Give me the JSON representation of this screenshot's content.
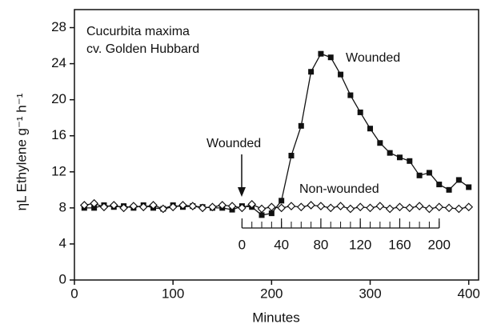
{
  "chart_data": {
    "type": "line",
    "annotations": [
      "Cucurbita maxima",
      "cv. Golden Hubbard",
      "Wounded",
      "Wounded",
      "Non-wounded"
    ],
    "x_label": "Minutes",
    "y_label": "ηL Ethylene g⁻¹ h⁻¹",
    "x": [
      10,
      20,
      30,
      40,
      50,
      60,
      70,
      80,
      90,
      100,
      110,
      120,
      130,
      140,
      150,
      160,
      170,
      180,
      190,
      200,
      210,
      220,
      230,
      240,
      250,
      260,
      270,
      280,
      290,
      300,
      310,
      320,
      330,
      340,
      350,
      360,
      370,
      380,
      390,
      400
    ],
    "series": [
      {
        "name": "Wounded",
        "color": "#111111",
        "marker": "square",
        "values": [
          8.0,
          8.0,
          8.3,
          8.1,
          8.2,
          8.0,
          8.3,
          8.0,
          7.9,
          8.3,
          8.1,
          8.2,
          8.1,
          8.0,
          8.0,
          7.8,
          8.2,
          8.1,
          7.2,
          7.4,
          8.8,
          13.8,
          17.1,
          23.1,
          25.1,
          24.7,
          22.8,
          20.5,
          18.6,
          16.8,
          15.2,
          14.1,
          13.6,
          13.2,
          11.6,
          11.9,
          10.6,
          10.0,
          11.1,
          10.3
        ]
      },
      {
        "name": "Non-wounded",
        "color": "#111111",
        "marker": "diamond",
        "values": [
          8.3,
          8.5,
          8.1,
          8.3,
          8.0,
          8.2,
          8.1,
          8.3,
          7.9,
          8.1,
          8.3,
          8.2,
          8.0,
          8.1,
          8.3,
          8.2,
          8.0,
          8.4,
          7.9,
          8.1,
          8.0,
          8.2,
          8.1,
          8.3,
          8.2,
          8.0,
          8.2,
          7.9,
          8.1,
          8.0,
          8.2,
          7.9,
          8.1,
          8.0,
          8.2,
          7.9,
          8.1,
          8.0,
          7.9,
          8.1
        ]
      }
    ],
    "xlim": [
      0,
      410
    ],
    "ylim": [
      0,
      30
    ],
    "xticks": [
      0,
      100,
      200,
      300,
      400
    ],
    "yticks": [
      0,
      4,
      8,
      12,
      16,
      20,
      24,
      28
    ],
    "inset_axis": {
      "xlim": [
        0,
        200
      ],
      "xticks": [
        0,
        40,
        80,
        120,
        160,
        200
      ],
      "minor_ticks": [
        0,
        10,
        20,
        30,
        40,
        50,
        60,
        70,
        80,
        90,
        100,
        110,
        120,
        130,
        140,
        150,
        160,
        170,
        180,
        190,
        200
      ]
    }
  }
}
